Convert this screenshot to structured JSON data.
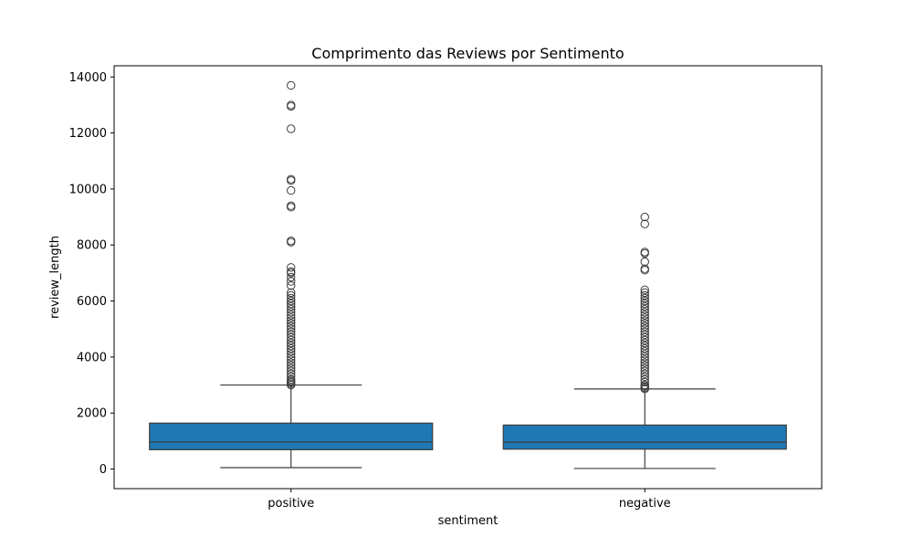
{
  "chart_data": {
    "type": "boxplot",
    "title": "Comprimento das Reviews por Sentimento",
    "xlabel": "sentiment",
    "ylabel": "review_length",
    "ylim": [
      -700,
      14400
    ],
    "yticks": [
      0,
      2000,
      4000,
      6000,
      8000,
      10000,
      12000,
      14000
    ],
    "categories": [
      "positive",
      "negative"
    ],
    "box_color": "#1f77b4",
    "grid": false,
    "boxes": [
      {
        "category": "positive",
        "whisker_low": 50,
        "q1": 690,
        "median": 970,
        "q3": 1640,
        "whisker_high": 3000,
        "outliers": [
          3000,
          3050,
          3100,
          3150,
          3200,
          3300,
          3400,
          3500,
          3600,
          3700,
          3800,
          3900,
          4000,
          4100,
          4200,
          4300,
          4400,
          4500,
          4600,
          4700,
          4800,
          4900,
          5000,
          5100,
          5200,
          5300,
          5400,
          5500,
          5600,
          5700,
          5800,
          5900,
          6000,
          6100,
          6200,
          6300,
          6550,
          6700,
          6850,
          7000,
          7050,
          7200,
          8100,
          8150,
          9350,
          9400,
          9950,
          10300,
          10350,
          12150,
          12950,
          13000,
          13700
        ]
      },
      {
        "category": "negative",
        "whisker_low": 20,
        "q1": 710,
        "median": 960,
        "q3": 1570,
        "whisker_high": 2860,
        "outliers": [
          2860,
          2900,
          2950,
          3000,
          3100,
          3200,
          3300,
          3400,
          3500,
          3600,
          3700,
          3800,
          3900,
          4000,
          4100,
          4200,
          4300,
          4400,
          4500,
          4600,
          4700,
          4800,
          4900,
          5000,
          5100,
          5200,
          5300,
          5400,
          5500,
          5600,
          5700,
          5800,
          5900,
          6000,
          6100,
          6200,
          6300,
          6400,
          7100,
          7150,
          7400,
          7700,
          7750,
          8750,
          9000
        ]
      }
    ]
  }
}
